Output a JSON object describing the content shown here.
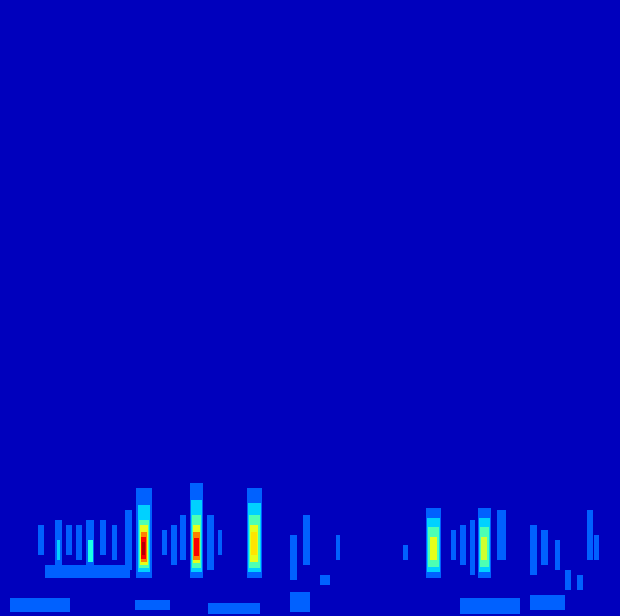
{
  "chart_data": {
    "type": "heatmap",
    "xlim": [
      0,
      620
    ],
    "ylim": [
      0,
      616
    ],
    "zlim": [
      0,
      1
    ],
    "tick_labels": false,
    "grid": false,
    "cells": [
      [
        0,
        620,
        0,
        616,
        0.06
      ],
      [
        136,
        152,
        38,
        128,
        0.22
      ],
      [
        138,
        150,
        44,
        111,
        0.33
      ],
      [
        139,
        149,
        48,
        96,
        0.45
      ],
      [
        140,
        148,
        51,
        91,
        0.6
      ],
      [
        141,
        147,
        54,
        84,
        0.75
      ],
      [
        141,
        146,
        57,
        79,
        0.88
      ],
      [
        142,
        145,
        61,
        74,
        0.95
      ],
      [
        190,
        203,
        38,
        133,
        0.22
      ],
      [
        191,
        202,
        44,
        116,
        0.33
      ],
      [
        192,
        201,
        48,
        101,
        0.45
      ],
      [
        193,
        200,
        53,
        91,
        0.6
      ],
      [
        193,
        200,
        56,
        84,
        0.75
      ],
      [
        194,
        199,
        60,
        78,
        0.88
      ],
      [
        247,
        262,
        38,
        128,
        0.22
      ],
      [
        248,
        261,
        44,
        113,
        0.33
      ],
      [
        249,
        260,
        48,
        101,
        0.45
      ],
      [
        250,
        258,
        54,
        91,
        0.6
      ],
      [
        251,
        257,
        61,
        84,
        0.65
      ],
      [
        426,
        441,
        38,
        108,
        0.22
      ],
      [
        427,
        440,
        44,
        98,
        0.33
      ],
      [
        428,
        439,
        49,
        89,
        0.45
      ],
      [
        430,
        437,
        56,
        79,
        0.6
      ],
      [
        478,
        491,
        38,
        108,
        0.22
      ],
      [
        479,
        490,
        44,
        98,
        0.33
      ],
      [
        480,
        489,
        49,
        89,
        0.45
      ],
      [
        481,
        487,
        56,
        79,
        0.58
      ],
      [
        38,
        44,
        61,
        91,
        0.22
      ],
      [
        55,
        62,
        51,
        96,
        0.22
      ],
      [
        57,
        60,
        56,
        76,
        0.33
      ],
      [
        66,
        72,
        61,
        91,
        0.22
      ],
      [
        76,
        82,
        56,
        91,
        0.22
      ],
      [
        86,
        94,
        51,
        96,
        0.22
      ],
      [
        88,
        93,
        54,
        76,
        0.4
      ],
      [
        100,
        106,
        61,
        96,
        0.22
      ],
      [
        112,
        117,
        56,
        91,
        0.22
      ],
      [
        125,
        132,
        46,
        106,
        0.22
      ],
      [
        162,
        167,
        61,
        86,
        0.22
      ],
      [
        171,
        177,
        51,
        91,
        0.22
      ],
      [
        180,
        186,
        56,
        101,
        0.22
      ],
      [
        207,
        214,
        46,
        101,
        0.22
      ],
      [
        218,
        222,
        61,
        86,
        0.22
      ],
      [
        290,
        297,
        36,
        81,
        0.22
      ],
      [
        303,
        310,
        51,
        101,
        0.22
      ],
      [
        336,
        340,
        56,
        81,
        0.22
      ],
      [
        403,
        408,
        56,
        71,
        0.22
      ],
      [
        451,
        456,
        56,
        86,
        0.22
      ],
      [
        460,
        466,
        51,
        91,
        0.22
      ],
      [
        470,
        475,
        41,
        96,
        0.22
      ],
      [
        497,
        506,
        56,
        106,
        0.22
      ],
      [
        530,
        537,
        41,
        91,
        0.22
      ],
      [
        541,
        548,
        51,
        86,
        0.22
      ],
      [
        555,
        560,
        46,
        76,
        0.22
      ],
      [
        565,
        571,
        26,
        46,
        0.22
      ],
      [
        577,
        583,
        26,
        41,
        0.22
      ],
      [
        587,
        593,
        56,
        106,
        0.22
      ],
      [
        594,
        599,
        56,
        81,
        0.22
      ],
      [
        10,
        70,
        4,
        18,
        0.22
      ],
      [
        135,
        170,
        6,
        16,
        0.22
      ],
      [
        208,
        260,
        2,
        13,
        0.22
      ],
      [
        290,
        310,
        4,
        24,
        0.22
      ],
      [
        460,
        520,
        2,
        18,
        0.22
      ],
      [
        530,
        565,
        6,
        21,
        0.22
      ],
      [
        320,
        330,
        31,
        41,
        0.22
      ],
      [
        45,
        130,
        38,
        51,
        0.22
      ]
    ]
  }
}
